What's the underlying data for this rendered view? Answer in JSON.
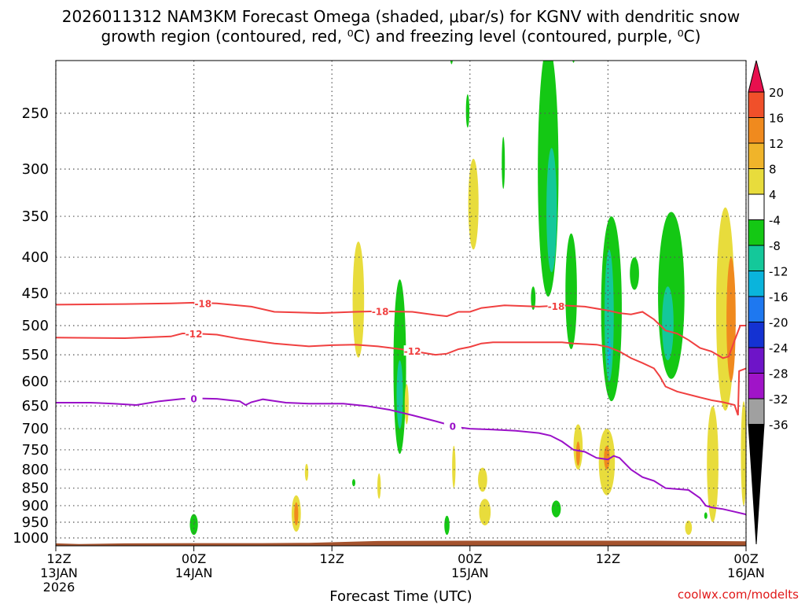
{
  "chart_data": {
    "type": "time-height contour",
    "title_lines": [
      "2026011312 NAM3KM Forecast Omega (shaded, μbar/s) for KGNV with dendritic snow",
      "growth region (contoured, red, ⁰C) and freezing level (contoured, purple, ⁰C)"
    ],
    "xlabel": "Forecast Time (UTC)",
    "x_range_hours": [
      0,
      60
    ],
    "x_ticks": [
      {
        "hour": 0,
        "lines": [
          "12Z",
          "13JAN",
          "2026"
        ]
      },
      {
        "hour": 12,
        "lines": [
          "00Z",
          "14JAN"
        ]
      },
      {
        "hour": 24,
        "lines": [
          "12Z"
        ]
      },
      {
        "hour": 36,
        "lines": [
          "00Z",
          "15JAN"
        ]
      },
      {
        "hour": 48,
        "lines": [
          "12Z"
        ]
      },
      {
        "hour": 60,
        "lines": [
          "00Z",
          "16JAN"
        ]
      }
    ],
    "y_levels_hpa": [
      250,
      300,
      350,
      400,
      450,
      500,
      550,
      600,
      650,
      700,
      750,
      800,
      850,
      900,
      950,
      1000
    ],
    "y_range_hpa": [
      200,
      1030
    ],
    "credit": "coolwx.com/modelts",
    "colorbar": {
      "labels": [
        "20",
        "16",
        "12",
        "8",
        "4",
        "-4",
        "-8",
        "-12",
        "-16",
        "-20",
        "-24",
        "-28",
        "-32",
        "-36"
      ],
      "colors": [
        "#e8104e",
        "#f0502a",
        "#f08a1e",
        "#f0b42a",
        "#e8dc3c",
        "#ffffff",
        "#14c814",
        "#14c89a",
        "#0ab4dc",
        "#1e78f0",
        "#1432d2",
        "#6e14c8",
        "#a014c8",
        "#a0a0a0",
        "#000000"
      ]
    },
    "contours": [
      {
        "name": "-18",
        "color": "#f04040",
        "points": [
          [
            0,
            467
          ],
          [
            6,
            466
          ],
          [
            10,
            465
          ],
          [
            12,
            464
          ],
          [
            14,
            465
          ],
          [
            17,
            470
          ],
          [
            19,
            478
          ],
          [
            23,
            480
          ],
          [
            26,
            478
          ],
          [
            28,
            477
          ],
          [
            31,
            478
          ],
          [
            33,
            483
          ],
          [
            34,
            485
          ],
          [
            35,
            478
          ],
          [
            36,
            478
          ],
          [
            37,
            472
          ],
          [
            39,
            468
          ],
          [
            42,
            470
          ],
          [
            44,
            468
          ],
          [
            46,
            470
          ],
          [
            48,
            476
          ],
          [
            49,
            480
          ],
          [
            50,
            482
          ],
          [
            51,
            478
          ],
          [
            52,
            490
          ],
          [
            53,
            508
          ],
          [
            54,
            513
          ],
          [
            55,
            524
          ],
          [
            56,
            538
          ],
          [
            57,
            544
          ],
          [
            58,
            556
          ],
          [
            58.5,
            553
          ],
          [
            59,
            525
          ],
          [
            59.5,
            500
          ],
          [
            60,
            500
          ]
        ],
        "labels": [
          {
            "hour": 12.8,
            "hpa": 465
          },
          {
            "hour": 28.2,
            "hpa": 477
          },
          {
            "hour": 43.5,
            "hpa": 469
          }
        ]
      },
      {
        "name": "-12",
        "color": "#f04040",
        "points": [
          [
            0,
            520
          ],
          [
            6,
            521
          ],
          [
            10,
            518
          ],
          [
            11,
            513
          ],
          [
            12,
            513
          ],
          [
            14,
            515
          ],
          [
            16,
            522
          ],
          [
            19,
            530
          ],
          [
            22,
            535
          ],
          [
            24,
            533
          ],
          [
            26,
            532
          ],
          [
            28,
            535
          ],
          [
            30,
            540
          ],
          [
            33,
            550
          ],
          [
            34,
            548
          ],
          [
            35,
            540
          ],
          [
            36,
            536
          ],
          [
            37,
            530
          ],
          [
            38,
            528
          ],
          [
            40,
            528
          ],
          [
            44,
            528
          ],
          [
            45,
            530
          ],
          [
            47,
            532
          ],
          [
            48,
            536
          ],
          [
            49,
            544
          ],
          [
            50,
            556
          ],
          [
            51,
            565
          ],
          [
            52,
            575
          ],
          [
            52.5,
            590
          ],
          [
            53,
            610
          ],
          [
            54,
            620
          ],
          [
            56,
            632
          ],
          [
            57,
            638
          ],
          [
            58,
            642
          ],
          [
            59,
            648
          ],
          [
            59.3,
            670
          ],
          [
            59.4,
            580
          ],
          [
            60,
            575
          ]
        ],
        "labels": [
          {
            "hour": 12.0,
            "hpa": 513
          },
          {
            "hour": 31.0,
            "hpa": 543
          }
        ]
      },
      {
        "name": "0",
        "color": "#9a10c8",
        "points": [
          [
            0,
            643
          ],
          [
            3,
            643
          ],
          [
            5,
            645
          ],
          [
            7,
            648
          ],
          [
            9,
            640
          ],
          [
            11,
            635
          ],
          [
            12,
            634
          ],
          [
            14,
            635
          ],
          [
            16,
            640
          ],
          [
            16.5,
            648
          ],
          [
            17,
            642
          ],
          [
            18,
            636
          ],
          [
            20,
            643
          ],
          [
            22,
            645
          ],
          [
            25,
            645
          ],
          [
            27,
            650
          ],
          [
            29,
            658
          ],
          [
            31,
            670
          ],
          [
            33,
            683
          ],
          [
            34,
            690
          ],
          [
            35,
            697
          ],
          [
            36,
            700
          ],
          [
            38,
            702
          ],
          [
            40,
            705
          ],
          [
            42,
            710
          ],
          [
            43,
            716
          ],
          [
            44,
            730
          ],
          [
            45,
            750
          ],
          [
            46,
            755
          ],
          [
            47,
            770
          ],
          [
            48,
            774
          ],
          [
            48.5,
            765
          ],
          [
            49,
            770
          ],
          [
            50,
            800
          ],
          [
            51,
            820
          ],
          [
            52,
            830
          ],
          [
            53,
            850
          ],
          [
            55,
            855
          ],
          [
            56,
            878
          ],
          [
            56.5,
            900
          ],
          [
            57,
            905
          ],
          [
            58,
            910
          ],
          [
            59,
            918
          ],
          [
            60,
            926
          ]
        ],
        "labels": [
          {
            "hour": 12.0,
            "hpa": 634
          },
          {
            "hour": 34.5,
            "hpa": 694
          }
        ]
      }
    ],
    "omega_blobs": [
      {
        "color": "#14c814",
        "hour": 34.4,
        "hpa": [
          200,
          213
        ],
        "w": 0.22
      },
      {
        "color": "#14c814",
        "hour": 35.8,
        "hpa": [
          235,
          262
        ],
        "w": 0.3
      },
      {
        "color": "#e8dc3c",
        "hour": 36.3,
        "hpa": [
          290,
          390
        ],
        "w": 0.9
      },
      {
        "color": "#14c814",
        "hour": 38.9,
        "hpa": [
          270,
          320
        ],
        "w": 0.22
      },
      {
        "color": "#14c814",
        "hour": 42.8,
        "hpa": [
          200,
          455
        ],
        "w": 1.8
      },
      {
        "color": "#14c89a",
        "hour": 43.1,
        "hpa": [
          280,
          420
        ],
        "w": 0.9
      },
      {
        "color": "#14c814",
        "hour": 45.0,
        "hpa": [
          200,
          212
        ],
        "w": 0.25
      },
      {
        "color": "#14c814",
        "hour": 41.5,
        "hpa": [
          440,
          475
        ],
        "w": 0.4
      },
      {
        "color": "#14c814",
        "hour": 44.8,
        "hpa": [
          370,
          540
        ],
        "w": 1.0
      },
      {
        "color": "#14c814",
        "hour": 48.3,
        "hpa": [
          350,
          640
        ],
        "w": 1.8
      },
      {
        "color": "#14c89a",
        "hour": 48.1,
        "hpa": [
          390,
          600
        ],
        "w": 0.8
      },
      {
        "color": "#0ab4dc",
        "hour": 48.1,
        "hpa": [
          520,
          570
        ],
        "w": 0.25
      },
      {
        "color": "#14c814",
        "hour": 50.3,
        "hpa": [
          400,
          445
        ],
        "w": 0.8
      },
      {
        "color": "#14c814",
        "hour": 53.5,
        "hpa": [
          345,
          595
        ],
        "w": 2.3
      },
      {
        "color": "#14c89a",
        "hour": 53.2,
        "hpa": [
          440,
          560
        ],
        "w": 1.0
      },
      {
        "color": "#e8dc3c",
        "hour": 58.2,
        "hpa": [
          340,
          660
        ],
        "w": 1.6
      },
      {
        "color": "#f08a1e",
        "hour": 58.7,
        "hpa": [
          400,
          600
        ],
        "w": 0.8
      },
      {
        "color": "#e8dc3c",
        "hour": 26.3,
        "hpa": [
          380,
          555
        ],
        "w": 1.0
      },
      {
        "color": "#14c814",
        "hour": 29.9,
        "hpa": [
          430,
          760
        ],
        "w": 1.1
      },
      {
        "color": "#14c89a",
        "hour": 29.9,
        "hpa": [
          560,
          700
        ],
        "w": 0.55
      },
      {
        "color": "#e8dc3c",
        "hour": 30.5,
        "hpa": [
          605,
          690
        ],
        "w": 0.35
      },
      {
        "color": "#e8dc3c",
        "hour": 45.4,
        "hpa": [
          690,
          800
        ],
        "w": 0.8
      },
      {
        "color": "#f08a1e",
        "hour": 45.4,
        "hpa": [
          730,
          790
        ],
        "w": 0.35
      },
      {
        "color": "#e8dc3c",
        "hour": 47.9,
        "hpa": [
          700,
          870
        ],
        "w": 1.4
      },
      {
        "color": "#f08a1e",
        "hour": 47.9,
        "hpa": [
          740,
          800
        ],
        "w": 0.5
      },
      {
        "color": "#e8dc3c",
        "hour": 57.1,
        "hpa": [
          650,
          950
        ],
        "w": 1.0
      },
      {
        "color": "#e8dc3c",
        "hour": 59.8,
        "hpa": [
          640,
          900
        ],
        "w": 0.5
      },
      {
        "color": "#e8dc3c",
        "hour": 20.9,
        "hpa": [
          870,
          980
        ],
        "w": 0.8
      },
      {
        "color": "#f08a1e",
        "hour": 20.9,
        "hpa": [
          890,
          960
        ],
        "w": 0.35
      },
      {
        "color": "#e8dc3c",
        "hour": 21.8,
        "hpa": [
          785,
          830
        ],
        "w": 0.3
      },
      {
        "color": "#14c814",
        "hour": 12.0,
        "hpa": [
          925,
          990
        ],
        "w": 0.7
      },
      {
        "color": "#14c814",
        "hour": 25.9,
        "hpa": [
          825,
          845
        ],
        "w": 0.22
      },
      {
        "color": "#e8dc3c",
        "hour": 28.1,
        "hpa": [
          810,
          880
        ],
        "w": 0.3
      },
      {
        "color": "#14c814",
        "hour": 34.0,
        "hpa": [
          930,
          990
        ],
        "w": 0.45
      },
      {
        "color": "#e8dc3c",
        "hour": 34.6,
        "hpa": [
          740,
          850
        ],
        "w": 0.3
      },
      {
        "color": "#e8dc3c",
        "hour": 37.1,
        "hpa": [
          795,
          860
        ],
        "w": 0.8
      },
      {
        "color": "#e8dc3c",
        "hour": 37.3,
        "hpa": [
          880,
          960
        ],
        "w": 1.0
      },
      {
        "color": "#14c814",
        "hour": 43.5,
        "hpa": [
          885,
          935
        ],
        "w": 0.8
      },
      {
        "color": "#e8dc3c",
        "hour": 55.0,
        "hpa": [
          945,
          990
        ],
        "w": 0.6
      },
      {
        "color": "#14c814",
        "hour": 56.5,
        "hpa": [
          920,
          940
        ],
        "w": 0.15
      }
    ]
  }
}
